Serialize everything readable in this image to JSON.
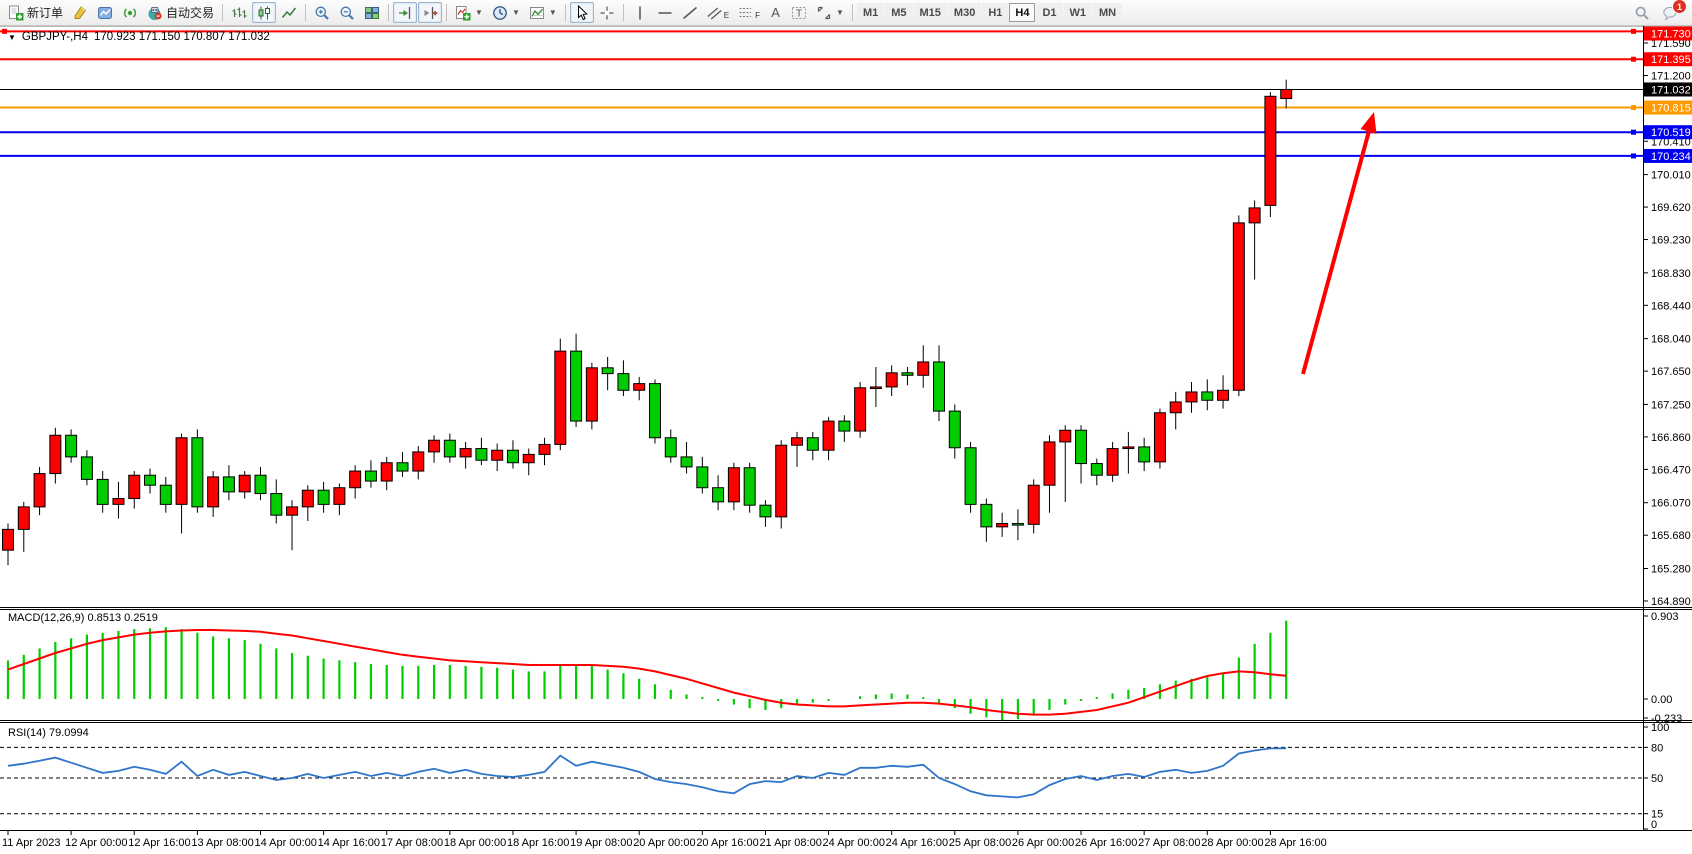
{
  "toolbar": {
    "new_order_label": "新订单",
    "autotrade_label": "自动交易",
    "text_tool_label": "A",
    "label_tool_label": "T",
    "channel_tool_label": "E",
    "fibo_tool_label": "F",
    "timeframes": [
      "M1",
      "M5",
      "M15",
      "M30",
      "H1",
      "H4",
      "D1",
      "W1",
      "MN"
    ],
    "active_timeframe": "H4",
    "notification_badge": "1"
  },
  "chart": {
    "symbol_title": "GBPJPY-,H4",
    "ohlc_text": "170.923 171.150 170.807 171.032",
    "colors": {
      "bull": "#FF0000",
      "bear": "#00CC00",
      "wick": "#000000",
      "line_red": "#FF0000",
      "line_orange": "#FF9900",
      "line_blue": "#0000EE",
      "current_price_line": "#000000",
      "rsi_line": "#2E75C9",
      "macd_hist": "#00CC00",
      "macd_signal": "#FF0000",
      "arrow": "#FF0000"
    },
    "hlines": [
      {
        "price": 171.73,
        "label": "171.730",
        "color": "#FF0000"
      },
      {
        "price": 171.395,
        "label": "171.395",
        "color": "#FF0000"
      },
      {
        "price": 170.815,
        "label": "170.815",
        "color": "#FF9900"
      },
      {
        "price": 170.519,
        "label": "170.519",
        "color": "#0000EE"
      },
      {
        "price": 170.234,
        "label": "170.234",
        "color": "#0000EE"
      }
    ],
    "current_price": {
      "value": 171.032,
      "label": "171.032",
      "color": "#000000"
    },
    "price_ticks": [
      171.59,
      171.2,
      170.41,
      170.01,
      169.62,
      169.23,
      168.83,
      168.44,
      168.04,
      167.65,
      167.25,
      166.86,
      166.47,
      166.07,
      165.68,
      165.28,
      164.89
    ],
    "time_labels": [
      "11 Apr 2023",
      "12 Apr 00:00",
      "12 Apr 16:00",
      "13 Apr 08:00",
      "14 Apr 00:00",
      "14 Apr 16:00",
      "17 Apr 08:00",
      "18 Apr 00:00",
      "18 Apr 16:00",
      "19 Apr 08:00",
      "20 Apr 00:00",
      "20 Apr 16:00",
      "21 Apr 08:00",
      "24 Apr 00:00",
      "24 Apr 16:00",
      "25 Apr 08:00",
      "26 Apr 00:00",
      "26 Apr 16:00",
      "27 Apr 08:00",
      "28 Apr 00:00",
      "28 Apr 16:00"
    ]
  },
  "chart_data": {
    "type": "candlestick",
    "symbol": "GBPJPY",
    "timeframe": "H4",
    "ylim": [
      164.89,
      171.73
    ],
    "candles": [
      [
        165.5,
        165.82,
        165.32,
        165.75
      ],
      [
        165.75,
        166.08,
        165.48,
        166.02
      ],
      [
        166.02,
        166.5,
        165.92,
        166.42
      ],
      [
        166.42,
        166.97,
        166.3,
        166.88
      ],
      [
        166.88,
        166.95,
        166.55,
        166.62
      ],
      [
        166.62,
        166.7,
        166.28,
        166.35
      ],
      [
        166.35,
        166.45,
        165.95,
        166.05
      ],
      [
        166.05,
        166.32,
        165.88,
        166.12
      ],
      [
        166.12,
        166.45,
        166.0,
        166.4
      ],
      [
        166.4,
        166.48,
        166.18,
        166.28
      ],
      [
        166.28,
        166.38,
        165.95,
        166.05
      ],
      [
        166.05,
        166.9,
        165.7,
        166.85
      ],
      [
        166.85,
        166.95,
        165.95,
        166.02
      ],
      [
        166.02,
        166.45,
        165.9,
        166.38
      ],
      [
        166.38,
        166.52,
        166.1,
        166.2
      ],
      [
        166.2,
        166.45,
        166.12,
        166.4
      ],
      [
        166.4,
        166.5,
        166.1,
        166.18
      ],
      [
        166.18,
        166.35,
        165.82,
        165.92
      ],
      [
        165.92,
        166.1,
        165.5,
        166.02
      ],
      [
        166.02,
        166.28,
        165.85,
        166.22
      ],
      [
        166.22,
        166.32,
        165.95,
        166.05
      ],
      [
        166.05,
        166.3,
        165.92,
        166.25
      ],
      [
        166.25,
        166.52,
        166.12,
        166.45
      ],
      [
        166.45,
        166.58,
        166.25,
        166.33
      ],
      [
        166.33,
        166.62,
        166.22,
        166.55
      ],
      [
        166.55,
        166.68,
        166.38,
        166.45
      ],
      [
        166.45,
        166.75,
        166.35,
        166.68
      ],
      [
        166.68,
        166.88,
        166.55,
        166.82
      ],
      [
        166.82,
        166.9,
        166.55,
        166.62
      ],
      [
        166.62,
        166.8,
        166.48,
        166.72
      ],
      [
        166.72,
        166.85,
        166.52,
        166.58
      ],
      [
        166.58,
        166.78,
        166.45,
        166.7
      ],
      [
        166.7,
        166.82,
        166.48,
        166.55
      ],
      [
        166.55,
        166.72,
        166.4,
        166.65
      ],
      [
        166.65,
        166.85,
        166.52,
        166.77
      ],
      [
        166.77,
        168.04,
        166.7,
        167.89
      ],
      [
        167.89,
        168.1,
        166.98,
        167.05
      ],
      [
        167.05,
        167.75,
        166.95,
        167.69
      ],
      [
        167.69,
        167.82,
        167.42,
        167.62
      ],
      [
        167.62,
        167.78,
        167.35,
        167.42
      ],
      [
        167.42,
        167.58,
        167.3,
        167.5
      ],
      [
        167.5,
        167.55,
        166.78,
        166.85
      ],
      [
        166.85,
        166.95,
        166.55,
        166.62
      ],
      [
        166.62,
        166.8,
        166.42,
        166.5
      ],
      [
        166.5,
        166.62,
        166.18,
        166.25
      ],
      [
        166.25,
        166.4,
        165.98,
        166.08
      ],
      [
        166.08,
        166.55,
        165.98,
        166.49
      ],
      [
        166.49,
        166.55,
        165.95,
        166.04
      ],
      [
        166.04,
        166.1,
        165.78,
        165.9
      ],
      [
        165.9,
        166.82,
        165.76,
        166.76
      ],
      [
        166.76,
        166.92,
        166.5,
        166.85
      ],
      [
        166.85,
        166.92,
        166.58,
        166.7
      ],
      [
        166.7,
        167.1,
        166.58,
        167.05
      ],
      [
        167.05,
        167.12,
        166.8,
        166.93
      ],
      [
        166.93,
        167.52,
        166.85,
        167.45
      ],
      [
        167.45,
        167.7,
        167.22,
        167.46
      ],
      [
        167.46,
        167.72,
        167.35,
        167.63
      ],
      [
        167.63,
        167.7,
        167.48,
        167.6
      ],
      [
        167.6,
        167.96,
        167.45,
        167.76
      ],
      [
        167.76,
        167.96,
        167.05,
        167.17
      ],
      [
        167.17,
        167.25,
        166.6,
        166.73
      ],
      [
        166.73,
        166.8,
        165.95,
        166.05
      ],
      [
        166.05,
        166.12,
        165.6,
        165.78
      ],
      [
        165.78,
        165.95,
        165.66,
        165.82
      ],
      [
        165.82,
        165.99,
        165.62,
        165.81
      ],
      [
        165.81,
        166.35,
        165.7,
        166.28
      ],
      [
        166.28,
        166.88,
        165.95,
        166.8
      ],
      [
        166.8,
        167.0,
        166.08,
        166.94
      ],
      [
        166.94,
        167.0,
        166.3,
        166.54
      ],
      [
        166.54,
        166.6,
        166.28,
        166.4
      ],
      [
        166.4,
        166.8,
        166.32,
        166.72
      ],
      [
        166.72,
        166.92,
        166.42,
        166.74
      ],
      [
        166.74,
        166.85,
        166.45,
        166.56
      ],
      [
        166.56,
        167.2,
        166.48,
        167.15
      ],
      [
        167.15,
        167.4,
        166.95,
        167.28
      ],
      [
        167.28,
        167.52,
        167.15,
        167.4
      ],
      [
        167.4,
        167.55,
        167.18,
        167.3
      ],
      [
        167.3,
        167.6,
        167.2,
        167.42
      ],
      [
        167.42,
        169.52,
        167.35,
        169.43
      ],
      [
        169.43,
        169.7,
        168.75,
        169.61
      ],
      [
        169.64,
        171.0,
        169.5,
        170.95
      ],
      [
        170.923,
        171.15,
        170.807,
        171.032
      ]
    ],
    "macd": {
      "label_text": "MACD(12,26,9) 0.8513 0.2519",
      "axis_labels": [
        0.903,
        0.0,
        -0.233
      ],
      "histogram": [
        0.42,
        0.48,
        0.55,
        0.62,
        0.66,
        0.7,
        0.72,
        0.74,
        0.76,
        0.77,
        0.78,
        0.76,
        0.72,
        0.68,
        0.66,
        0.64,
        0.6,
        0.55,
        0.5,
        0.47,
        0.44,
        0.42,
        0.4,
        0.38,
        0.37,
        0.36,
        0.36,
        0.37,
        0.37,
        0.36,
        0.35,
        0.34,
        0.32,
        0.3,
        0.3,
        0.36,
        0.38,
        0.36,
        0.32,
        0.28,
        0.22,
        0.16,
        0.1,
        0.05,
        0.02,
        -0.02,
        -0.06,
        -0.1,
        -0.12,
        -0.1,
        -0.06,
        -0.04,
        -0.02,
        0.0,
        0.03,
        0.05,
        0.06,
        0.05,
        0.02,
        -0.04,
        -0.1,
        -0.16,
        -0.2,
        -0.23,
        -0.22,
        -0.18,
        -0.12,
        -0.06,
        -0.02,
        0.02,
        0.06,
        0.1,
        0.12,
        0.16,
        0.2,
        0.22,
        0.24,
        0.28,
        0.45,
        0.6,
        0.72,
        0.851
      ],
      "signal": [
        0.32,
        0.38,
        0.44,
        0.5,
        0.55,
        0.6,
        0.64,
        0.67,
        0.7,
        0.72,
        0.735,
        0.745,
        0.75,
        0.75,
        0.745,
        0.74,
        0.73,
        0.71,
        0.69,
        0.66,
        0.63,
        0.6,
        0.57,
        0.54,
        0.51,
        0.48,
        0.46,
        0.44,
        0.42,
        0.41,
        0.4,
        0.39,
        0.38,
        0.37,
        0.37,
        0.37,
        0.37,
        0.37,
        0.36,
        0.35,
        0.33,
        0.3,
        0.26,
        0.22,
        0.17,
        0.12,
        0.07,
        0.03,
        -0.01,
        -0.04,
        -0.06,
        -0.07,
        -0.08,
        -0.08,
        -0.07,
        -0.06,
        -0.05,
        -0.04,
        -0.04,
        -0.05,
        -0.07,
        -0.09,
        -0.12,
        -0.14,
        -0.16,
        -0.17,
        -0.17,
        -0.16,
        -0.14,
        -0.12,
        -0.08,
        -0.04,
        0.02,
        0.08,
        0.14,
        0.2,
        0.25,
        0.28,
        0.3,
        0.29,
        0.27,
        0.252
      ]
    },
    "rsi": {
      "label_text": "RSI(14) 79.0994",
      "levels": [
        100,
        80,
        50,
        15,
        0
      ],
      "values": [
        62,
        64,
        67,
        70,
        65,
        60,
        55,
        57,
        61,
        58,
        54,
        66,
        52,
        58,
        53,
        56,
        52,
        48,
        50,
        54,
        50,
        53,
        56,
        52,
        55,
        52,
        56,
        59,
        55,
        58,
        54,
        52,
        51,
        53,
        56,
        72,
        62,
        66,
        63,
        60,
        56,
        49,
        46,
        44,
        41,
        37,
        35,
        44,
        47,
        46,
        52,
        50,
        55,
        53,
        60,
        60,
        62,
        61,
        63,
        50,
        44,
        37,
        33,
        32,
        31,
        34,
        43,
        49,
        52,
        48,
        52,
        54,
        51,
        56,
        58,
        55,
        57,
        62,
        74,
        77,
        79,
        79.1
      ]
    }
  }
}
